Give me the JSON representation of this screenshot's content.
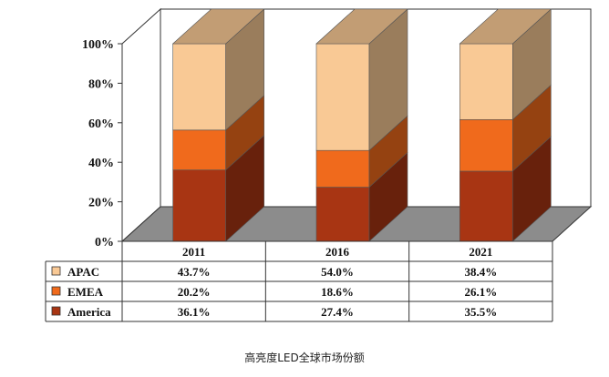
{
  "caption": "高亮度LED全球市场份额",
  "chart_data": {
    "type": "bar",
    "stacked": true,
    "percent_axis": true,
    "three_d": true,
    "categories": [
      "2011",
      "2016",
      "2021"
    ],
    "series": [
      {
        "name": "America",
        "values": [
          36.1,
          27.4,
          35.5
        ],
        "color": "#a83513",
        "display": [
          "36.1%",
          "27.4%",
          "35.5%"
        ]
      },
      {
        "name": "EMEA",
        "values": [
          20.2,
          18.6,
          26.1
        ],
        "color": "#f06a1c",
        "display": [
          "20.2%",
          "18.6%",
          "26.1%"
        ]
      },
      {
        "name": "APAC",
        "values": [
          43.7,
          54.0,
          38.4
        ],
        "color": "#f9c995",
        "display": [
          "43.7%",
          "54.0%",
          "38.4%"
        ]
      }
    ],
    "ylim": [
      0,
      100
    ],
    "yticks": [
      "0%",
      "20%",
      "40%",
      "60%",
      "80%",
      "100%"
    ],
    "grid": false,
    "legend": "data-table-below",
    "table_order": [
      "APAC",
      "EMEA",
      "America"
    ]
  }
}
